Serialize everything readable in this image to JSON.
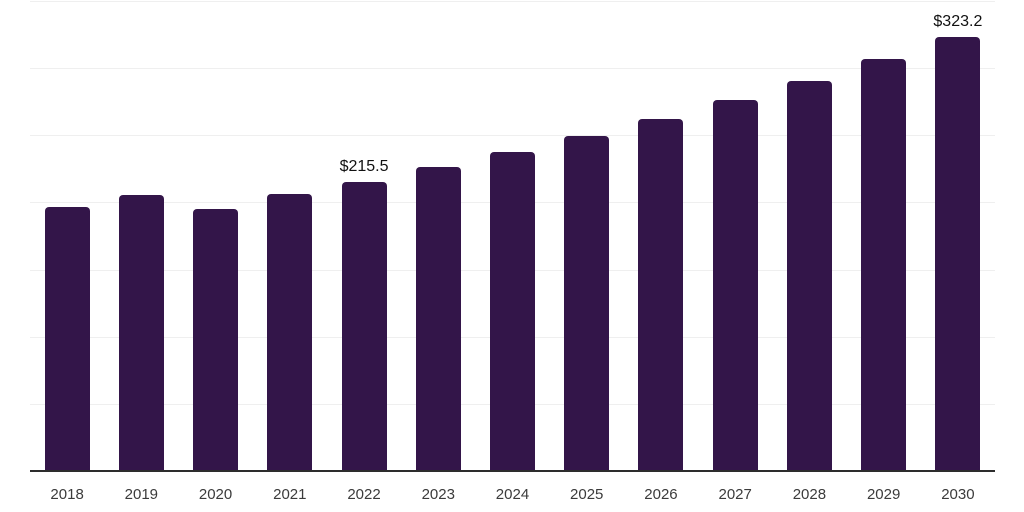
{
  "chart_data": {
    "type": "bar",
    "title": "",
    "xlabel": "",
    "ylabel": "",
    "categories": [
      "2018",
      "2019",
      "2020",
      "2021",
      "2022",
      "2023",
      "2024",
      "2025",
      "2026",
      "2027",
      "2028",
      "2029",
      "2030"
    ],
    "values": [
      196.5,
      205.3,
      195.3,
      206.3,
      215.5,
      226.2,
      237.3,
      249.7,
      262.1,
      276.3,
      290.6,
      307.0,
      323.2
    ],
    "data_labels": {
      "2022": "$215.5",
      "2030": "$323.2"
    },
    "ylim": [
      0,
      350
    ],
    "gridline_step": 50,
    "grid": true,
    "legend_position": "none",
    "bar_color": "#331549",
    "gridline_color": "#efefef",
    "axis_line_color": "#2d2d2d",
    "tick_label_color": "#3b3b3b",
    "data_label_color": "#111111",
    "background_color": "#ffffff"
  }
}
